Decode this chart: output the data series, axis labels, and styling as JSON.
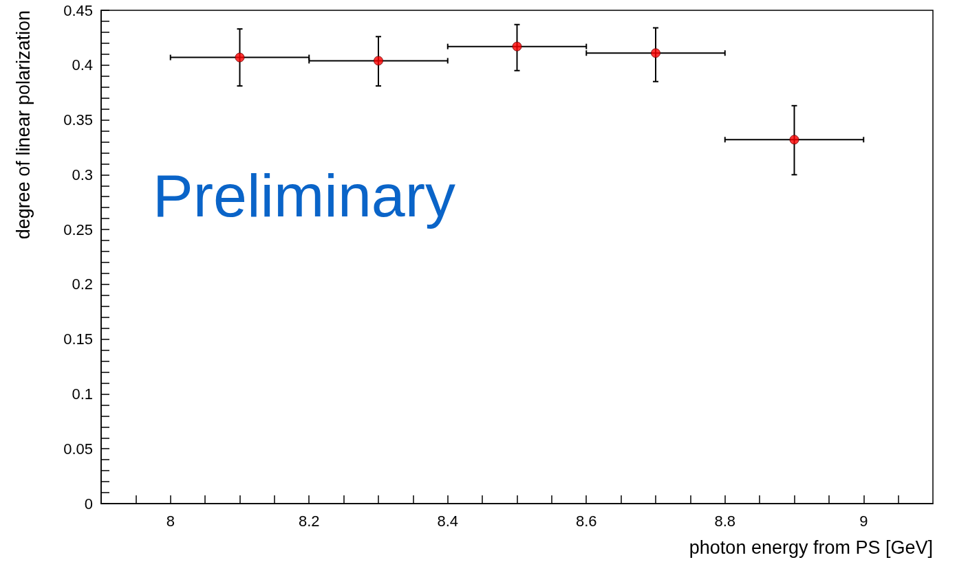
{
  "chart_data": {
    "type": "scatter",
    "xlabel": "photon energy from PS [GeV]",
    "ylabel": "degree of linear polarization",
    "annotations": [
      "Preliminary"
    ],
    "x": [
      8.1,
      8.3,
      8.5,
      8.7,
      8.9
    ],
    "values": [
      0.407,
      0.404,
      0.417,
      0.411,
      0.332
    ],
    "errors": [
      [
        0.381,
        0.433
      ],
      [
        0.381,
        0.426
      ],
      [
        0.395,
        0.437
      ],
      [
        0.385,
        0.434
      ],
      [
        0.3,
        0.363
      ]
    ],
    "xerrors": [
      0.1,
      0.1,
      0.1,
      0.1,
      0.1
    ],
    "color": "#ff0000",
    "marker": "circle",
    "xlim": [
      7.9,
      9.1
    ],
    "xticks": [
      {
        "value": 7.95,
        "label": null
      },
      8,
      {
        "value": 8.05,
        "label": null
      },
      {
        "value": 8.1,
        "label": null
      },
      {
        "value": 8.15,
        "label": null
      },
      8.2,
      {
        "value": 8.25,
        "label": null
      },
      {
        "value": 8.3,
        "label": null
      },
      {
        "value": 8.35,
        "label": null
      },
      8.4,
      {
        "value": 8.45,
        "label": null
      },
      {
        "value": 8.5,
        "label": null
      },
      {
        "value": 8.55,
        "label": null
      },
      8.6,
      {
        "value": 8.65,
        "label": null
      },
      {
        "value": 8.7,
        "label": null
      },
      {
        "value": 8.75,
        "label": null
      },
      8.8,
      {
        "value": 8.85,
        "label": null
      },
      {
        "value": 8.9,
        "label": null
      },
      {
        "value": 8.95,
        "label": null
      },
      9,
      {
        "value": 9.05,
        "label": null
      }
    ],
    "ylim": [
      0,
      0.45
    ],
    "yticks": [
      0,
      {
        "value": 0.01,
        "label": null
      },
      {
        "value": 0.02,
        "label": null
      },
      {
        "value": 0.03,
        "label": null
      },
      {
        "value": 0.04,
        "label": null
      },
      0.05,
      {
        "value": 0.06,
        "label": null
      },
      {
        "value": 0.07,
        "label": null
      },
      {
        "value": 0.08,
        "label": null
      },
      {
        "value": 0.09,
        "label": null
      },
      0.1,
      {
        "value": 0.11,
        "label": null
      },
      {
        "value": 0.12,
        "label": null
      },
      {
        "value": 0.13,
        "label": null
      },
      {
        "value": 0.14,
        "label": null
      },
      0.15,
      {
        "value": 0.16,
        "label": null
      },
      {
        "value": 0.17,
        "label": null
      },
      {
        "value": 0.18,
        "label": null
      },
      {
        "value": 0.19,
        "label": null
      },
      0.2,
      {
        "value": 0.21,
        "label": null
      },
      {
        "value": 0.22,
        "label": null
      },
      {
        "value": 0.23,
        "label": null
      },
      {
        "value": 0.24,
        "label": null
      },
      0.25,
      {
        "value": 0.26,
        "label": null
      },
      {
        "value": 0.27,
        "label": null
      },
      {
        "value": 0.28,
        "label": null
      },
      {
        "value": 0.29,
        "label": null
      },
      0.3,
      {
        "value": 0.31,
        "label": null
      },
      {
        "value": 0.32,
        "label": null
      },
      {
        "value": 0.33,
        "label": null
      },
      {
        "value": 0.34,
        "label": null
      },
      0.35,
      {
        "value": 0.36,
        "label": null
      },
      {
        "value": 0.37,
        "label": null
      },
      {
        "value": 0.38,
        "label": null
      },
      {
        "value": 0.39,
        "label": null
      },
      0.4,
      {
        "value": 0.41,
        "label": null
      },
      {
        "value": 0.42,
        "label": null
      },
      {
        "value": 0.43,
        "label": null
      },
      {
        "value": 0.44,
        "label": null
      },
      0.45
    ],
    "grid": false
  }
}
